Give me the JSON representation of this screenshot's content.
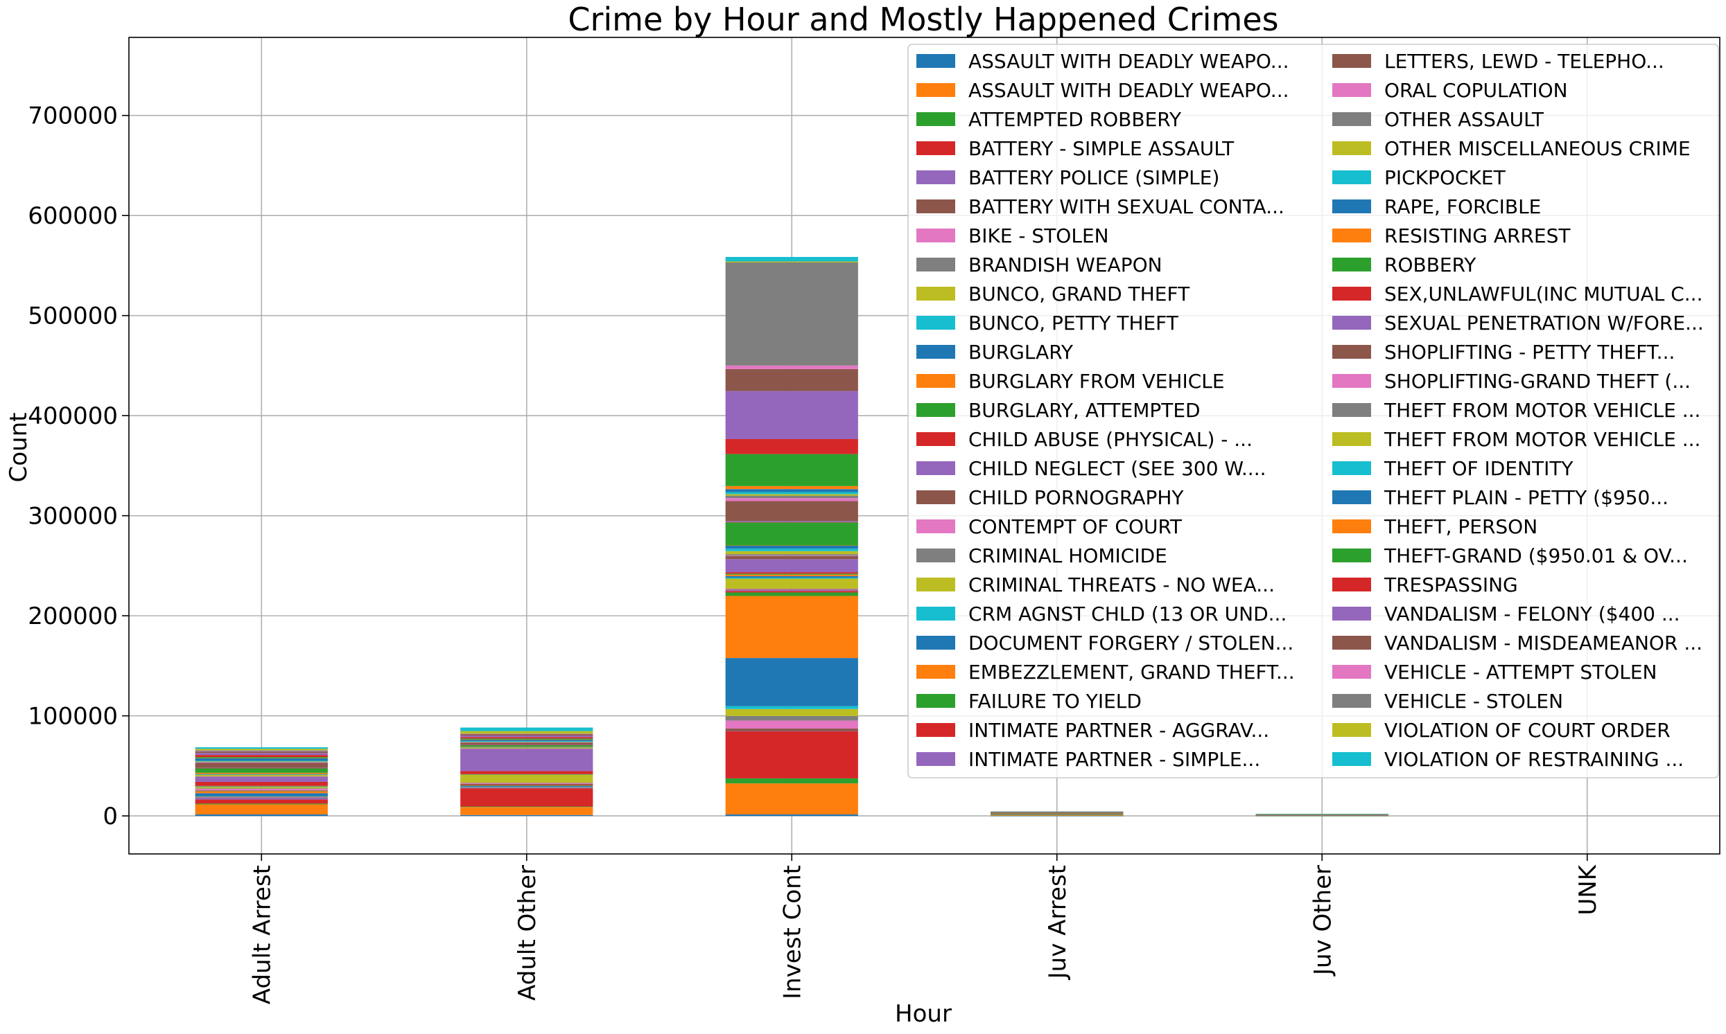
{
  "chart_data": {
    "type": "bar",
    "stacked": true,
    "title": "Crime by Hour and Mostly Happened Crimes",
    "xlabel": "Hour",
    "ylabel": "Count",
    "ylim": [
      -38000,
      778000
    ],
    "yticks": [
      0,
      100000,
      200000,
      300000,
      400000,
      500000,
      600000,
      700000
    ],
    "categories": [
      "Adult Arrest",
      "Adult Other",
      "Invest Cont",
      "Juv Arrest",
      "Juv Other",
      "UNK"
    ],
    "grid": true,
    "legend_position": "top-right",
    "legend_columns": 2,
    "palette": [
      "#1f77b4",
      "#ff7f0e",
      "#2ca02c",
      "#d62728",
      "#9467bd",
      "#8c564b",
      "#e377c2",
      "#7f7f7f",
      "#bcbd22",
      "#17becf"
    ],
    "series": [
      {
        "name": "ASSAULT WITH DEADLY WEAPO...",
        "values": [
          1500,
          900,
          1500,
          100,
          20,
          0
        ]
      },
      {
        "name": "ASSAULT WITH DEADLY WEAPO...",
        "values": [
          10000,
          8000,
          31000,
          800,
          200,
          0
        ]
      },
      {
        "name": "ATTEMPTED ROBBERY",
        "values": [
          800,
          500,
          5000,
          150,
          20,
          0
        ]
      },
      {
        "name": "BATTERY - SIMPLE ASSAULT",
        "values": [
          4000,
          18000,
          47000,
          400,
          400,
          0
        ]
      },
      {
        "name": "BATTERY POLICE (SIMPLE)",
        "values": [
          1500,
          300,
          300,
          50,
          10,
          0
        ]
      },
      {
        "name": "BATTERY WITH SEXUAL CONTA...",
        "values": [
          300,
          200,
          2500,
          20,
          20,
          0
        ]
      },
      {
        "name": "BIKE - STOLEN",
        "values": [
          300,
          200,
          8000,
          20,
          20,
          0
        ]
      },
      {
        "name": "BRANDISH WEAPON",
        "values": [
          1000,
          800,
          4500,
          50,
          20,
          0
        ]
      },
      {
        "name": "BUNCO, GRAND THEFT",
        "values": [
          200,
          200,
          7000,
          10,
          10,
          0
        ]
      },
      {
        "name": "BUNCO, PETTY THEFT",
        "values": [
          100,
          100,
          3000,
          10,
          10,
          0
        ]
      },
      {
        "name": "BURGLARY",
        "values": [
          3000,
          1000,
          48000,
          250,
          50,
          0
        ]
      },
      {
        "name": "BURGLARY FROM VEHICLE",
        "values": [
          2000,
          500,
          62000,
          100,
          40,
          0
        ]
      },
      {
        "name": "BURGLARY, ATTEMPTED",
        "values": [
          200,
          100,
          3500,
          20,
          10,
          0
        ]
      },
      {
        "name": "CHILD ABUSE (PHYSICAL) - ...",
        "values": [
          400,
          800,
          1500,
          20,
          50,
          0
        ]
      },
      {
        "name": "CHILD NEGLECT (SEE 300 W....",
        "values": [
          100,
          400,
          1000,
          10,
          20,
          0
        ]
      },
      {
        "name": "CHILD PORNOGRAPHY",
        "values": [
          100,
          50,
          500,
          10,
          10,
          0
        ]
      },
      {
        "name": "CONTEMPT OF COURT",
        "values": [
          1500,
          1000,
          500,
          20,
          10,
          0
        ]
      },
      {
        "name": "CRIMINAL HOMICIDE",
        "values": [
          500,
          100,
          300,
          20,
          10,
          0
        ]
      },
      {
        "name": "CRIMINAL THREATS - NO WEA...",
        "values": [
          1500,
          8000,
          10000,
          100,
          200,
          0
        ]
      },
      {
        "name": "CRM AGNST CHLD (13 OR UND...",
        "values": [
          200,
          300,
          1000,
          10,
          20,
          0
        ]
      },
      {
        "name": "DOCUMENT FORGERY / STOLEN...",
        "values": [
          300,
          100,
          1500,
          10,
          10,
          0
        ]
      },
      {
        "name": "EMBEZZLEMENT, GRAND THEFT...",
        "values": [
          200,
          100,
          1500,
          10,
          10,
          0
        ]
      },
      {
        "name": "FAILURE TO YIELD",
        "values": [
          300,
          100,
          1000,
          20,
          10,
          0
        ]
      },
      {
        "name": "INTIMATE PARTNER - AGGRAV...",
        "values": [
          4000,
          3000,
          1500,
          20,
          20,
          0
        ]
      },
      {
        "name": "INTIMATE PARTNER - SIMPLE...",
        "values": [
          5000,
          22000,
          13000,
          50,
          100,
          0
        ]
      },
      {
        "name": "LETTERS, LEWD  -  TELEPHO...",
        "values": [
          100,
          500,
          3000,
          10,
          20,
          0
        ]
      },
      {
        "name": "ORAL COPULATION",
        "values": [
          100,
          50,
          500,
          10,
          10,
          0
        ]
      },
      {
        "name": "OTHER ASSAULT",
        "values": [
          500,
          300,
          1500,
          20,
          10,
          0
        ]
      },
      {
        "name": "OTHER MISCELLANEOUS CRIME",
        "values": [
          1500,
          1000,
          3000,
          50,
          20,
          0
        ]
      },
      {
        "name": "PICKPOCKET",
        "values": [
          200,
          100,
          2500,
          10,
          10,
          0
        ]
      },
      {
        "name": "RAPE, FORCIBLE",
        "values": [
          500,
          500,
          3000,
          20,
          20,
          0
        ]
      },
      {
        "name": "RESISTING ARREST",
        "values": [
          1200,
          100,
          200,
          50,
          10,
          0
        ]
      },
      {
        "name": "ROBBERY",
        "values": [
          4500,
          1500,
          23000,
          600,
          100,
          0
        ]
      },
      {
        "name": "SEX,UNLAWFUL(INC MUTUAL C...",
        "values": [
          200,
          300,
          300,
          10,
          10,
          0
        ]
      },
      {
        "name": "SEXUAL PENETRATION W/FORE...",
        "values": [
          200,
          200,
          1000,
          10,
          10,
          0
        ]
      },
      {
        "name": "SHOPLIFTING - PETTY THEFT...",
        "values": [
          5000,
          2000,
          20000,
          400,
          80,
          0
        ]
      },
      {
        "name": "SHOPLIFTING-GRAND THEFT (...",
        "values": [
          500,
          200,
          3000,
          30,
          10,
          0
        ]
      },
      {
        "name": "THEFT FROM MOTOR VEHICLE ...",
        "values": [
          500,
          300,
          2500,
          20,
          10,
          0
        ]
      },
      {
        "name": "THEFT FROM MOTOR VEHICLE ...",
        "values": [
          500,
          200,
          1500,
          20,
          10,
          0
        ]
      },
      {
        "name": "THEFT OF IDENTITY",
        "values": [
          600,
          600,
          2000,
          10,
          10,
          0
        ]
      },
      {
        "name": "THEFT PLAIN - PETTY ($950...",
        "values": [
          2500,
          1500,
          3000,
          100,
          40,
          0
        ]
      },
      {
        "name": "THEFT, PERSON",
        "values": [
          300,
          200,
          3000,
          20,
          10,
          0
        ]
      },
      {
        "name": "THEFT-GRAND ($950.01 & OV...",
        "values": [
          1000,
          1000,
          32000,
          100,
          30,
          0
        ]
      },
      {
        "name": "TRESPASSING",
        "values": [
          2000,
          1500,
          15000,
          100,
          50,
          0
        ]
      },
      {
        "name": "VANDALISM - FELONY ($400 ...",
        "values": [
          2000,
          1500,
          48000,
          200,
          100,
          0
        ]
      },
      {
        "name": "VANDALISM - MISDEAMEANOR ...",
        "values": [
          1500,
          1500,
          22000,
          150,
          80,
          0
        ]
      },
      {
        "name": "VEHICLE - ATTEMPT STOLEN",
        "values": [
          200,
          100,
          3500,
          20,
          10,
          0
        ]
      },
      {
        "name": "VEHICLE - STOLEN",
        "values": [
          1000,
          400,
          103000,
          100,
          20,
          0
        ]
      },
      {
        "name": "VIOLATION OF COURT ORDER",
        "values": [
          1500,
          2500,
          1000,
          20,
          20,
          0
        ]
      },
      {
        "name": "VIOLATION OF RESTRAINING ...",
        "values": [
          1500,
          3500,
          4500,
          20,
          40,
          0
        ]
      }
    ]
  }
}
